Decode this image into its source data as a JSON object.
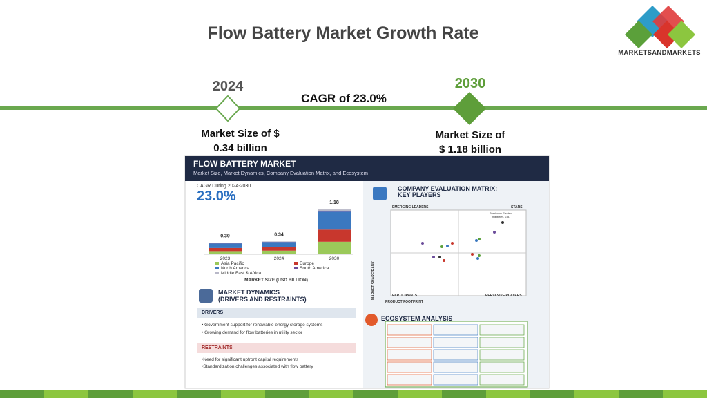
{
  "title": "Flow Battery Market Growth Rate",
  "logo": "MARKETSANDMARKETS",
  "timeline": {
    "start": {
      "year": "2024",
      "market_size": [
        "Market Size of $",
        "0.34 billion"
      ]
    },
    "end": {
      "year": "2030",
      "market_size": [
        "Market Size of",
        "$ 1.18 billion"
      ]
    },
    "cagr": "CAGR of 23.0%"
  },
  "infographic": {
    "title": "FLOW BATTERY MARKET",
    "subtitle": "Market Size, Market Dynamics, Company Evaluation Matrix, and Ecosystem",
    "cagr_label": "CAGR During 2024-2030",
    "cagr_value": "23.0%",
    "chart_data": {
      "type": "bar",
      "categories": [
        "2023",
        "2024",
        "2030"
      ],
      "values": [
        0.3,
        0.34,
        1.18
      ],
      "value_labels": [
        "0.30",
        "0.34",
        "1.18"
      ],
      "axis_title": "MARKET SIZE (USD BILLION)",
      "series": [
        {
          "name": "Asia Pacific",
          "color": "#9bc95a"
        },
        {
          "name": "Europe",
          "color": "#c8372d"
        },
        {
          "name": "North America",
          "color": "#3b78c0"
        },
        {
          "name": "South America",
          "color": "#6b4c9a"
        },
        {
          "name": "Middle East & Africa",
          "color": "#b8b8c8"
        }
      ]
    },
    "dynamics": {
      "title": [
        "MARKET DYNAMICS",
        "(DRIVERS AND RESTRAINTS)"
      ],
      "drivers_label": "DRIVERS",
      "drivers": [
        "Government support for renewable energy storage systems",
        "Growing demand for flow batteries in utility sector"
      ],
      "restraints_label": "RESTRAINTS",
      "restraints": [
        "Need for significant upfront capital requirements",
        "Standardization challenges associated with flow battery"
      ]
    },
    "matrix": {
      "title": [
        "COMPANY EVALUATION MATRIX:",
        "KEY PLAYERS"
      ],
      "quadrants": [
        "EMERGING LEADERS",
        "STARS",
        "PARTICIPANTS",
        "PERVASIVE PLAYERS"
      ],
      "y_axis": "MARKET SHARE/RANK",
      "x_axis": "PRODUCT FOOTPRINT",
      "highlight": "Sumitomo Electric Industries, Ltd."
    },
    "ecosystem": {
      "title": "ECOSYSTEM ANALYSIS"
    }
  }
}
